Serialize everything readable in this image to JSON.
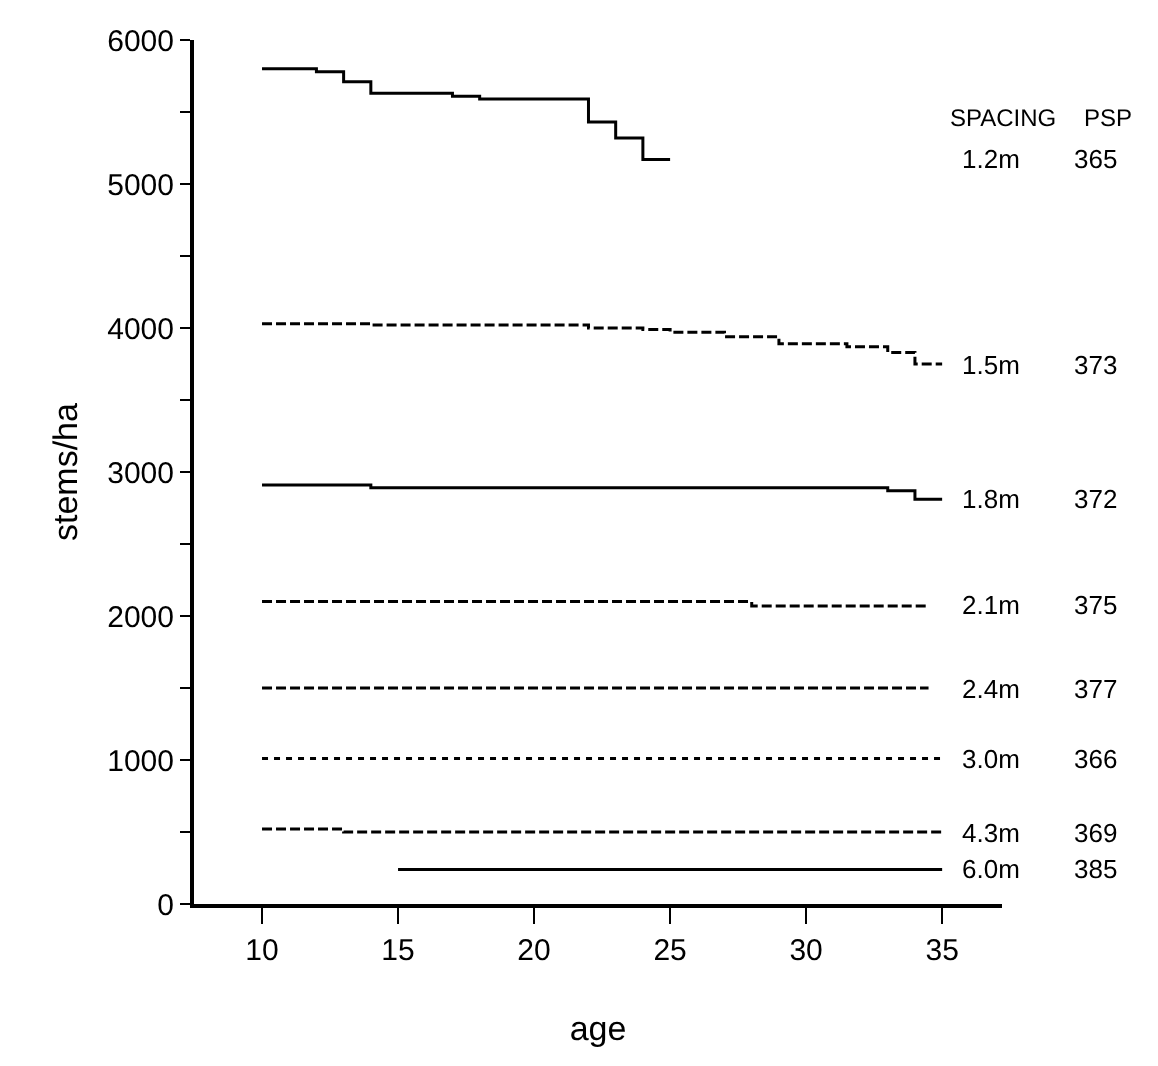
{
  "chart_data": {
    "type": "step",
    "xlabel": "age",
    "ylabel": "stems/ha",
    "xlim": [
      7.5,
      37.2
    ],
    "xticks": [
      10,
      15,
      20,
      25,
      30,
      35
    ],
    "ylim": [
      0,
      6000
    ],
    "yticks": [
      0,
      {
        "value": 500,
        "label": null
      },
      1000,
      {
        "value": 1500,
        "label": null
      },
      2000,
      {
        "value": 2500,
        "label": null
      },
      3000,
      {
        "value": 3500,
        "label": null
      },
      4000,
      {
        "value": 4500,
        "label": null
      },
      5000,
      {
        "value": 5500,
        "label": null
      },
      6000
    ],
    "legend": false,
    "marker": "none",
    "annotations": [
      "SPACING",
      "PSP",
      "365",
      "373",
      "372",
      "375",
      "377",
      "366",
      "369",
      "385"
    ],
    "series": [
      {
        "name": "1.2m",
        "color": "#000000",
        "line_style": "solid",
        "x": [
          10,
          12,
          13,
          14,
          17,
          18,
          22,
          23,
          24,
          25
        ],
        "values": [
          5800,
          5780,
          5710,
          5630,
          5610,
          5590,
          5430,
          5320,
          5170,
          5170
        ]
      },
      {
        "name": "1.5m",
        "color": "#000000",
        "line_style": "dashed",
        "x": [
          10,
          14,
          22,
          24,
          25,
          27,
          29,
          31.5,
          33,
          34,
          35
        ],
        "values": [
          4030,
          4020,
          4000,
          3990,
          3970,
          3940,
          3890,
          3870,
          3830,
          3750,
          3750
        ]
      },
      {
        "name": "1.8m",
        "color": "#000000",
        "line_style": "solid",
        "x": [
          10,
          14,
          32,
          33,
          34,
          35
        ],
        "values": [
          2910,
          2890,
          2890,
          2870,
          2810,
          2810
        ]
      },
      {
        "name": "2.1m",
        "color": "#000000",
        "line_style": "dashed",
        "x": [
          10,
          28,
          34.5
        ],
        "values": [
          2100,
          2070,
          2070
        ]
      },
      {
        "name": "2.4m",
        "color": "#000000",
        "line_style": "dashed",
        "x": [
          10,
          34.5
        ],
        "values": [
          1500,
          1500
        ]
      },
      {
        "name": "3.0m",
        "color": "#000000",
        "line_style": "dotted",
        "x": [
          10,
          35
        ],
        "values": [
          1010,
          1010
        ]
      },
      {
        "name": "4.3m",
        "color": "#000000",
        "line_style": "dashed",
        "x": [
          10,
          13,
          35
        ],
        "values": [
          520,
          500,
          500
        ]
      },
      {
        "name": "6.0m",
        "color": "#000000",
        "line_style": "solid",
        "x": [
          15,
          35
        ],
        "values": [
          240,
          240
        ]
      }
    ]
  }
}
